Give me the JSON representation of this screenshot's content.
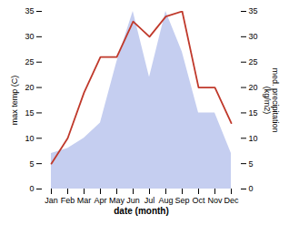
{
  "chart_data": {
    "type": "line",
    "xlabel": "date (month)",
    "ylabel": "max temp (C)",
    "y2label": "med. precipitation\n(kg/m2)",
    "categories": [
      "Jan",
      "Feb",
      "Mar",
      "Apr",
      "May",
      "Jun",
      "Jul",
      "Aug",
      "Sep",
      "Oct",
      "Nov",
      "Dec"
    ],
    "series": [
      {
        "type": "area",
        "color": "#c5cef0",
        "axis": "y2",
        "values": [
          7,
          8,
          10,
          13,
          25,
          35,
          22,
          35,
          27,
          15,
          15,
          7
        ]
      },
      {
        "type": "line",
        "color": "#c0392b",
        "values": [
          5,
          10,
          19,
          26,
          26,
          33,
          30,
          34,
          35,
          20,
          20,
          13
        ]
      }
    ],
    "ylim": [
      0,
      35
    ],
    "yticks": [
      0,
      5,
      10,
      15,
      20,
      25,
      30,
      35
    ],
    "y2lim": [
      0,
      35
    ],
    "y2ticks": [
      0,
      5,
      10,
      15,
      20,
      25,
      30,
      35
    ]
  }
}
